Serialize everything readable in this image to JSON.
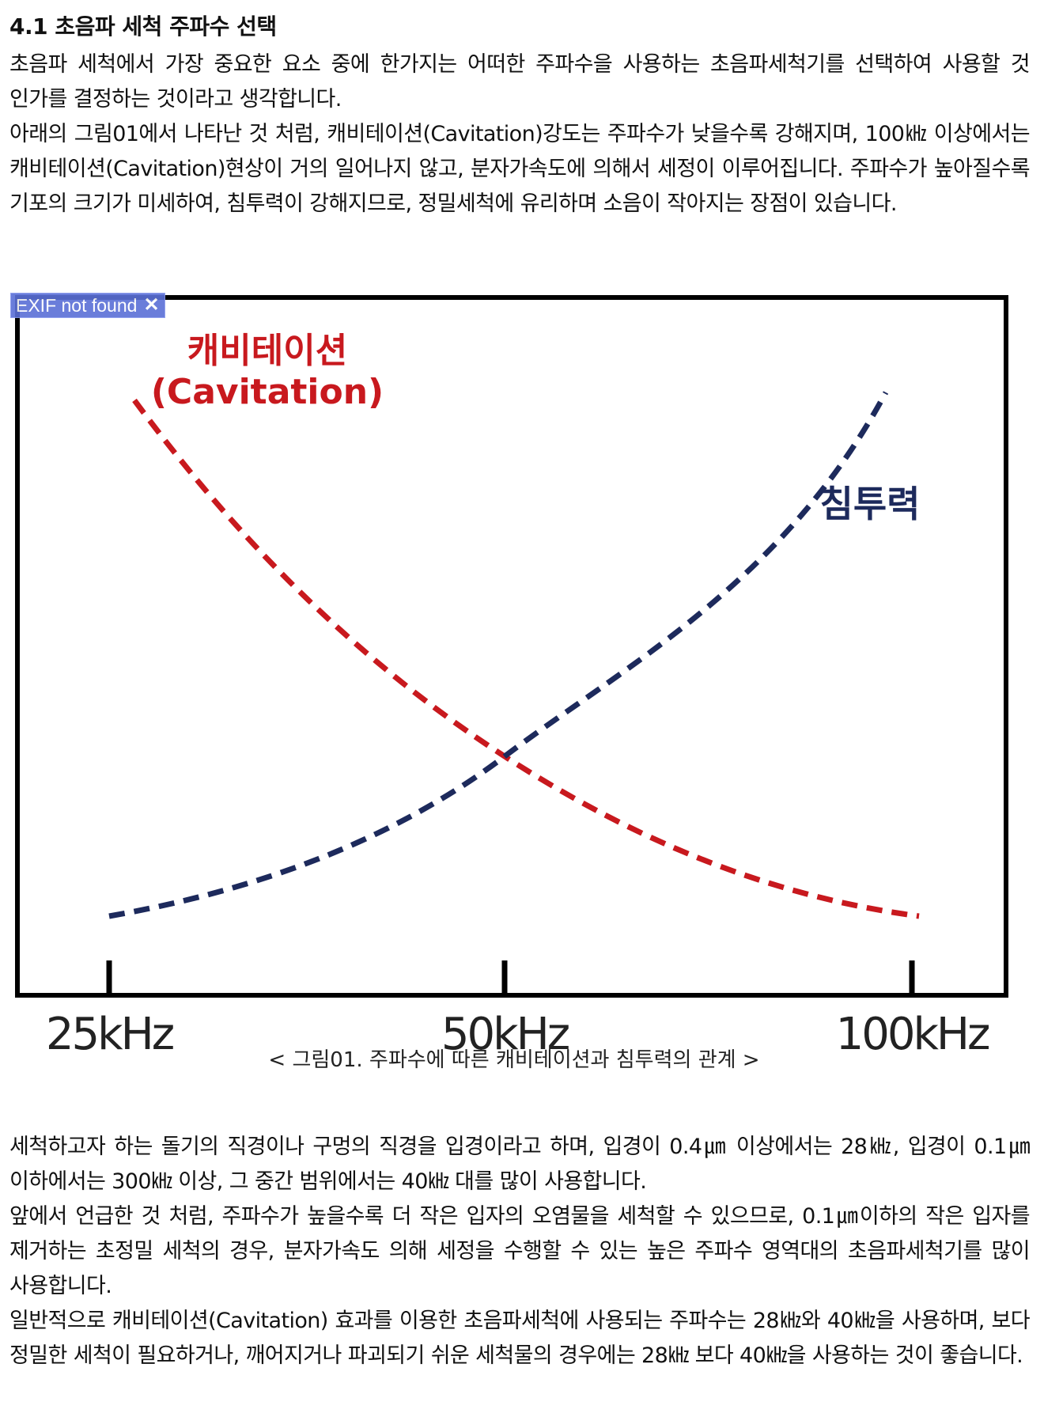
{
  "section_title": "4.1 초음파 세척 주파수 선택",
  "intro_paragraphs": [
    "초음파 세척에서 가장 중요한 요소 중에 한가지는 어떠한 주파수을 사용하는 초음파세척기를 선택하여 사용할 것 인가를 결정하는 것이라고 생각합니다.",
    "아래의 그림01에서 나타난 것 처럼, 캐비테이션(Cavitation)강도는 주파수가 낮을수록 강해지며, 100㎑ 이상에서는 캐비테이션(Cavitation)현상이 거의 일어나지 않고, 분자가속도에 의해서 세정이 이루어집니다. 주파수가 높아질수록 기포의 크기가 미세하여, 침투력이 강해지므로, 정밀세척에 유리하며 소음이 작아지는 장점이 있습니다."
  ],
  "exif_badge": {
    "text": "EXIF not found",
    "close_glyph": "✕"
  },
  "chart_data": {
    "type": "line",
    "x": [
      "25kHz",
      "50kHz",
      "100kHz"
    ],
    "series": [
      {
        "name": "캐비테이션 (Cavitation)",
        "name_lines": [
          "캐비테이션",
          "(Cavitation)"
        ],
        "color": "#c8191e",
        "style": "dashed",
        "trend": "decreasing",
        "values": [
          0.92,
          0.35,
          0.1
        ]
      },
      {
        "name": "침투력",
        "name_lines": [
          "침투력"
        ],
        "color": "#1d2a5c",
        "style": "dashed",
        "trend": "increasing",
        "values": [
          0.1,
          0.35,
          0.92
        ]
      }
    ],
    "xlabel": "",
    "ylabel": "",
    "grid": false,
    "caption": "< 그림01. 주파수에 따른 캐비테이션과 침투력의 관계 >"
  },
  "lower_paragraphs": [
    "세척하고자 하는 돌기의 직경이나 구멍의 직경을 입경이라고 하며, 입경이 0.4㎛ 이상에서는 28㎑, 입경이 0.1㎛ 이하에서는 300㎑ 이상, 그 중간 범위에서는 40㎑ 대를 많이 사용합니다.",
    "앞에서 언급한 것 처럼, 주파수가 높을수록 더 작은 입자의 오염물을 세척할 수 있으므로, 0.1㎛이하의 작은 입자를 제거하는 초정밀 세척의 경우, 분자가속도 의해 세정을 수행할 수 있는 높은 주파수 영역대의 초음파세척기를 많이 사용합니다.",
    "일반적으로 캐비테이션(Cavitation) 효과를 이용한 초음파세척에 사용되는 주파수는 28㎑와 40㎑을 사용하며, 보다 정밀한 세척이 필요하거나, 깨어지거나 파괴되기 쉬운 세척물의 경우에는 28㎑ 보다 40㎑을 사용하는 것이 좋습니다."
  ]
}
